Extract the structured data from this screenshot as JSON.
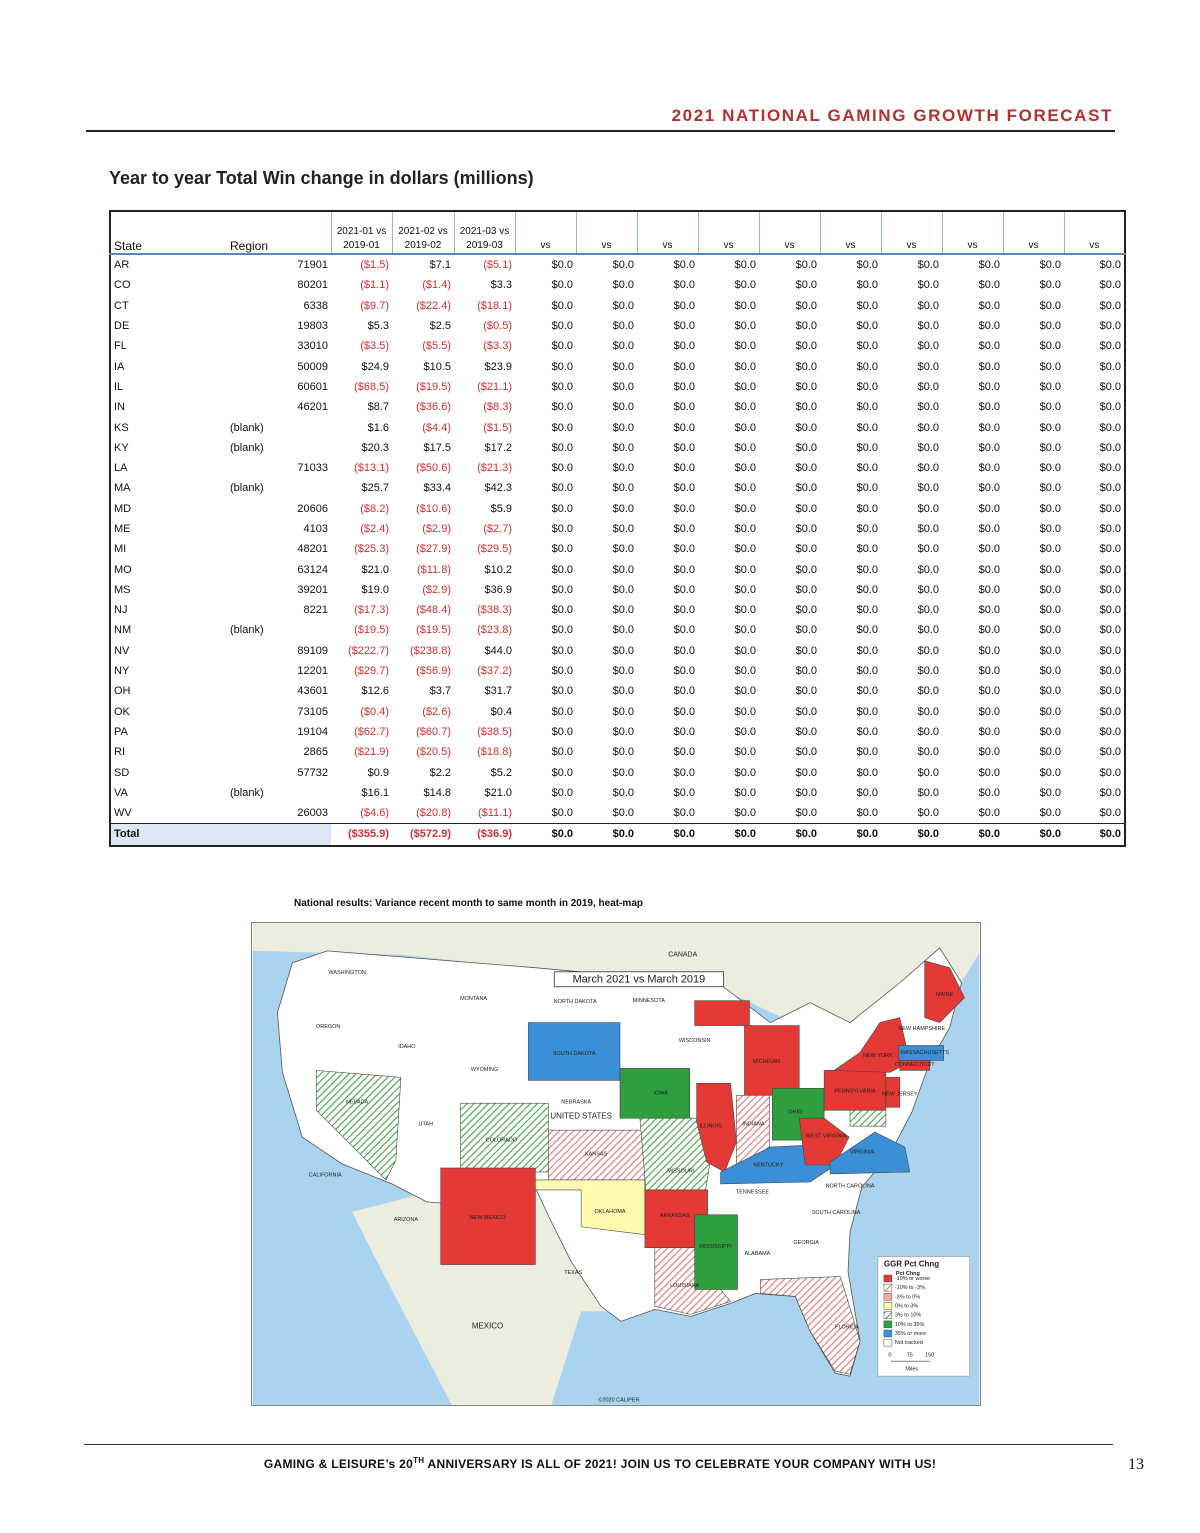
{
  "header": {
    "title": "2021 NATIONAL GAMING GROWTH FORECAST"
  },
  "table": {
    "title": "Year to year Total Win change in dollars (millions)",
    "columns": [
      "State",
      "Region",
      "2021-01 vs 2019-01",
      "2021-02 vs 2019-02",
      "2021-03 vs 2019-03",
      "vs",
      "vs",
      "vs",
      "vs",
      "vs",
      "vs",
      "vs",
      "vs",
      "vs",
      "vs"
    ],
    "rows": [
      [
        "AR",
        "71901",
        "($1.5)",
        "$7.1",
        "($5.1)",
        "$0.0",
        "$0.0",
        "$0.0",
        "$0.0",
        "$0.0",
        "$0.0",
        "$0.0",
        "$0.0",
        "$0.0",
        "$0.0"
      ],
      [
        "CO",
        "80201",
        "($1.1)",
        "($1.4)",
        "$3.3",
        "$0.0",
        "$0.0",
        "$0.0",
        "$0.0",
        "$0.0",
        "$0.0",
        "$0.0",
        "$0.0",
        "$0.0",
        "$0.0"
      ],
      [
        "CT",
        "6338",
        "($9.7)",
        "($22.4)",
        "($18.1)",
        "$0.0",
        "$0.0",
        "$0.0",
        "$0.0",
        "$0.0",
        "$0.0",
        "$0.0",
        "$0.0",
        "$0.0",
        "$0.0"
      ],
      [
        "DE",
        "19803",
        "$5.3",
        "$2.5",
        "($0.5)",
        "$0.0",
        "$0.0",
        "$0.0",
        "$0.0",
        "$0.0",
        "$0.0",
        "$0.0",
        "$0.0",
        "$0.0",
        "$0.0"
      ],
      [
        "FL",
        "33010",
        "($3.5)",
        "($5.5)",
        "($3.3)",
        "$0.0",
        "$0.0",
        "$0.0",
        "$0.0",
        "$0.0",
        "$0.0",
        "$0.0",
        "$0.0",
        "$0.0",
        "$0.0"
      ],
      [
        "IA",
        "50009",
        "$24.9",
        "$10.5",
        "$23.9",
        "$0.0",
        "$0.0",
        "$0.0",
        "$0.0",
        "$0.0",
        "$0.0",
        "$0.0",
        "$0.0",
        "$0.0",
        "$0.0"
      ],
      [
        "IL",
        "60601",
        "($68.5)",
        "($19.5)",
        "($21.1)",
        "$0.0",
        "$0.0",
        "$0.0",
        "$0.0",
        "$0.0",
        "$0.0",
        "$0.0",
        "$0.0",
        "$0.0",
        "$0.0"
      ],
      [
        "IN",
        "46201",
        "$8.7",
        "($36.6)",
        "($8.3)",
        "$0.0",
        "$0.0",
        "$0.0",
        "$0.0",
        "$0.0",
        "$0.0",
        "$0.0",
        "$0.0",
        "$0.0",
        "$0.0"
      ],
      [
        "KS",
        "(blank)",
        "$1.6",
        "($4.4)",
        "($1.5)",
        "$0.0",
        "$0.0",
        "$0.0",
        "$0.0",
        "$0.0",
        "$0.0",
        "$0.0",
        "$0.0",
        "$0.0",
        "$0.0"
      ],
      [
        "KY",
        "(blank)",
        "$20.3",
        "$17.5",
        "$17.2",
        "$0.0",
        "$0.0",
        "$0.0",
        "$0.0",
        "$0.0",
        "$0.0",
        "$0.0",
        "$0.0",
        "$0.0",
        "$0.0"
      ],
      [
        "LA",
        "71033",
        "($13.1)",
        "($50.6)",
        "($21.3)",
        "$0.0",
        "$0.0",
        "$0.0",
        "$0.0",
        "$0.0",
        "$0.0",
        "$0.0",
        "$0.0",
        "$0.0",
        "$0.0"
      ],
      [
        "MA",
        "(blank)",
        "$25.7",
        "$33.4",
        "$42.3",
        "$0.0",
        "$0.0",
        "$0.0",
        "$0.0",
        "$0.0",
        "$0.0",
        "$0.0",
        "$0.0",
        "$0.0",
        "$0.0"
      ],
      [
        "MD",
        "20606",
        "($8.2)",
        "($10.6)",
        "$5.9",
        "$0.0",
        "$0.0",
        "$0.0",
        "$0.0",
        "$0.0",
        "$0.0",
        "$0.0",
        "$0.0",
        "$0.0",
        "$0.0"
      ],
      [
        "ME",
        "4103",
        "($2.4)",
        "($2.9)",
        "($2.7)",
        "$0.0",
        "$0.0",
        "$0.0",
        "$0.0",
        "$0.0",
        "$0.0",
        "$0.0",
        "$0.0",
        "$0.0",
        "$0.0"
      ],
      [
        "MI",
        "48201",
        "($25.3)",
        "($27.9)",
        "($29.5)",
        "$0.0",
        "$0.0",
        "$0.0",
        "$0.0",
        "$0.0",
        "$0.0",
        "$0.0",
        "$0.0",
        "$0.0",
        "$0.0"
      ],
      [
        "MO",
        "63124",
        "$21.0",
        "($11.8)",
        "$10.2",
        "$0.0",
        "$0.0",
        "$0.0",
        "$0.0",
        "$0.0",
        "$0.0",
        "$0.0",
        "$0.0",
        "$0.0",
        "$0.0"
      ],
      [
        "MS",
        "39201",
        "$19.0",
        "($2.9)",
        "$36.9",
        "$0.0",
        "$0.0",
        "$0.0",
        "$0.0",
        "$0.0",
        "$0.0",
        "$0.0",
        "$0.0",
        "$0.0",
        "$0.0"
      ],
      [
        "NJ",
        "8221",
        "($17.3)",
        "($48.4)",
        "($38.3)",
        "$0.0",
        "$0.0",
        "$0.0",
        "$0.0",
        "$0.0",
        "$0.0",
        "$0.0",
        "$0.0",
        "$0.0",
        "$0.0"
      ],
      [
        "NM",
        "(blank)",
        "($19.5)",
        "($19.5)",
        "($23.8)",
        "$0.0",
        "$0.0",
        "$0.0",
        "$0.0",
        "$0.0",
        "$0.0",
        "$0.0",
        "$0.0",
        "$0.0",
        "$0.0"
      ],
      [
        "NV",
        "89109",
        "($222.7)",
        "($238.8)",
        "$44.0",
        "$0.0",
        "$0.0",
        "$0.0",
        "$0.0",
        "$0.0",
        "$0.0",
        "$0.0",
        "$0.0",
        "$0.0",
        "$0.0"
      ],
      [
        "NY",
        "12201",
        "($29.7)",
        "($56.9)",
        "($37.2)",
        "$0.0",
        "$0.0",
        "$0.0",
        "$0.0",
        "$0.0",
        "$0.0",
        "$0.0",
        "$0.0",
        "$0.0",
        "$0.0"
      ],
      [
        "OH",
        "43601",
        "$12.6",
        "$3.7",
        "$31.7",
        "$0.0",
        "$0.0",
        "$0.0",
        "$0.0",
        "$0.0",
        "$0.0",
        "$0.0",
        "$0.0",
        "$0.0",
        "$0.0"
      ],
      [
        "OK",
        "73105",
        "($0.4)",
        "($2.6)",
        "$0.4",
        "$0.0",
        "$0.0",
        "$0.0",
        "$0.0",
        "$0.0",
        "$0.0",
        "$0.0",
        "$0.0",
        "$0.0",
        "$0.0"
      ],
      [
        "PA",
        "19104",
        "($62.7)",
        "($60.7)",
        "($38.5)",
        "$0.0",
        "$0.0",
        "$0.0",
        "$0.0",
        "$0.0",
        "$0.0",
        "$0.0",
        "$0.0",
        "$0.0",
        "$0.0"
      ],
      [
        "RI",
        "2865",
        "($21.9)",
        "($20.5)",
        "($18.8)",
        "$0.0",
        "$0.0",
        "$0.0",
        "$0.0",
        "$0.0",
        "$0.0",
        "$0.0",
        "$0.0",
        "$0.0",
        "$0.0"
      ],
      [
        "SD",
        "57732",
        "$0.9",
        "$2.2",
        "$5.2",
        "$0.0",
        "$0.0",
        "$0.0",
        "$0.0",
        "$0.0",
        "$0.0",
        "$0.0",
        "$0.0",
        "$0.0",
        "$0.0"
      ],
      [
        "VA",
        "(blank)",
        "$16.1",
        "$14.8",
        "$21.0",
        "$0.0",
        "$0.0",
        "$0.0",
        "$0.0",
        "$0.0",
        "$0.0",
        "$0.0",
        "$0.0",
        "$0.0",
        "$0.0"
      ],
      [
        "WV",
        "26003",
        "($4.6)",
        "($20.8)",
        "($11.1)",
        "$0.0",
        "$0.0",
        "$0.0",
        "$0.0",
        "$0.0",
        "$0.0",
        "$0.0",
        "$0.0",
        "$0.0",
        "$0.0"
      ],
      [
        "Total",
        null,
        "($355.9)",
        "($572.9)",
        "($36.9)",
        "$0.0",
        "$0.0",
        "$0.0",
        "$0.0",
        "$0.0",
        "$0.0",
        "$0.0",
        "$0.0",
        "$0.0",
        "$0.0"
      ]
    ]
  },
  "map": {
    "caption": "National results: Variance recent month to same month in 2019, heat-map",
    "title": "March 2021 vs March 2019",
    "labels": [
      "CANADA",
      "WASHINGTON",
      "MONTANA",
      "NORTH DAKOTA",
      "MINNESOTA",
      "MAINE",
      "OREGON",
      "IDAHO",
      "SOUTH DAKOTA",
      "WISCONSIN",
      "NEW HAMPSHIRE",
      "MASSACHUSETTS",
      "WYOMING",
      "MICHIGAN",
      "NEW YORK",
      "CONNECTICUT",
      "NEVADA",
      "NEBRASKA",
      "UNITED STATES",
      "IOWA",
      "PENNSYLVANIA",
      "NEW JERSEY",
      "UTAH",
      "COLORADO",
      "ILLINOIS",
      "INDIANA",
      "OHIO",
      "WEST VIRGINIA",
      "KANSAS",
      "MISSOURI",
      "KENTUCKY",
      "VIRGINIA",
      "CALIFORNIA",
      "TENNESSEE",
      "NORTH CAROLINA",
      "OKLAHOMA",
      "ARIZONA",
      "NEW MEXICO",
      "ARKANSAS",
      "SOUTH CAROLINA",
      "MISSISSIPPI",
      "ALABAMA",
      "GEORGIA",
      "TEXAS",
      "LOUISIANA",
      "FLORIDA",
      "MEXICO",
      "©2020 CALIPER"
    ],
    "legend": {
      "title": "GGR Pct Chng",
      "subtitle": "Pct Chng",
      "items": [
        "-10% or worse",
        "-10% to -3%",
        "-3% to 0%",
        "0% to 3%",
        "3% to 10%",
        "10% to 35%",
        "35% or more",
        "Not tracked"
      ],
      "scale": [
        "0",
        "75",
        "150"
      ],
      "unit": "Miles"
    }
  },
  "footer": {
    "text_before": "GAMING & LEISURE’s 20",
    "superscript": "TH",
    "text_after": "ANNIVERSARY IS ALL OF 2021! JOIN US TO CELEBRATE YOUR COMPANY WITH US!",
    "page_number": "13"
  }
}
